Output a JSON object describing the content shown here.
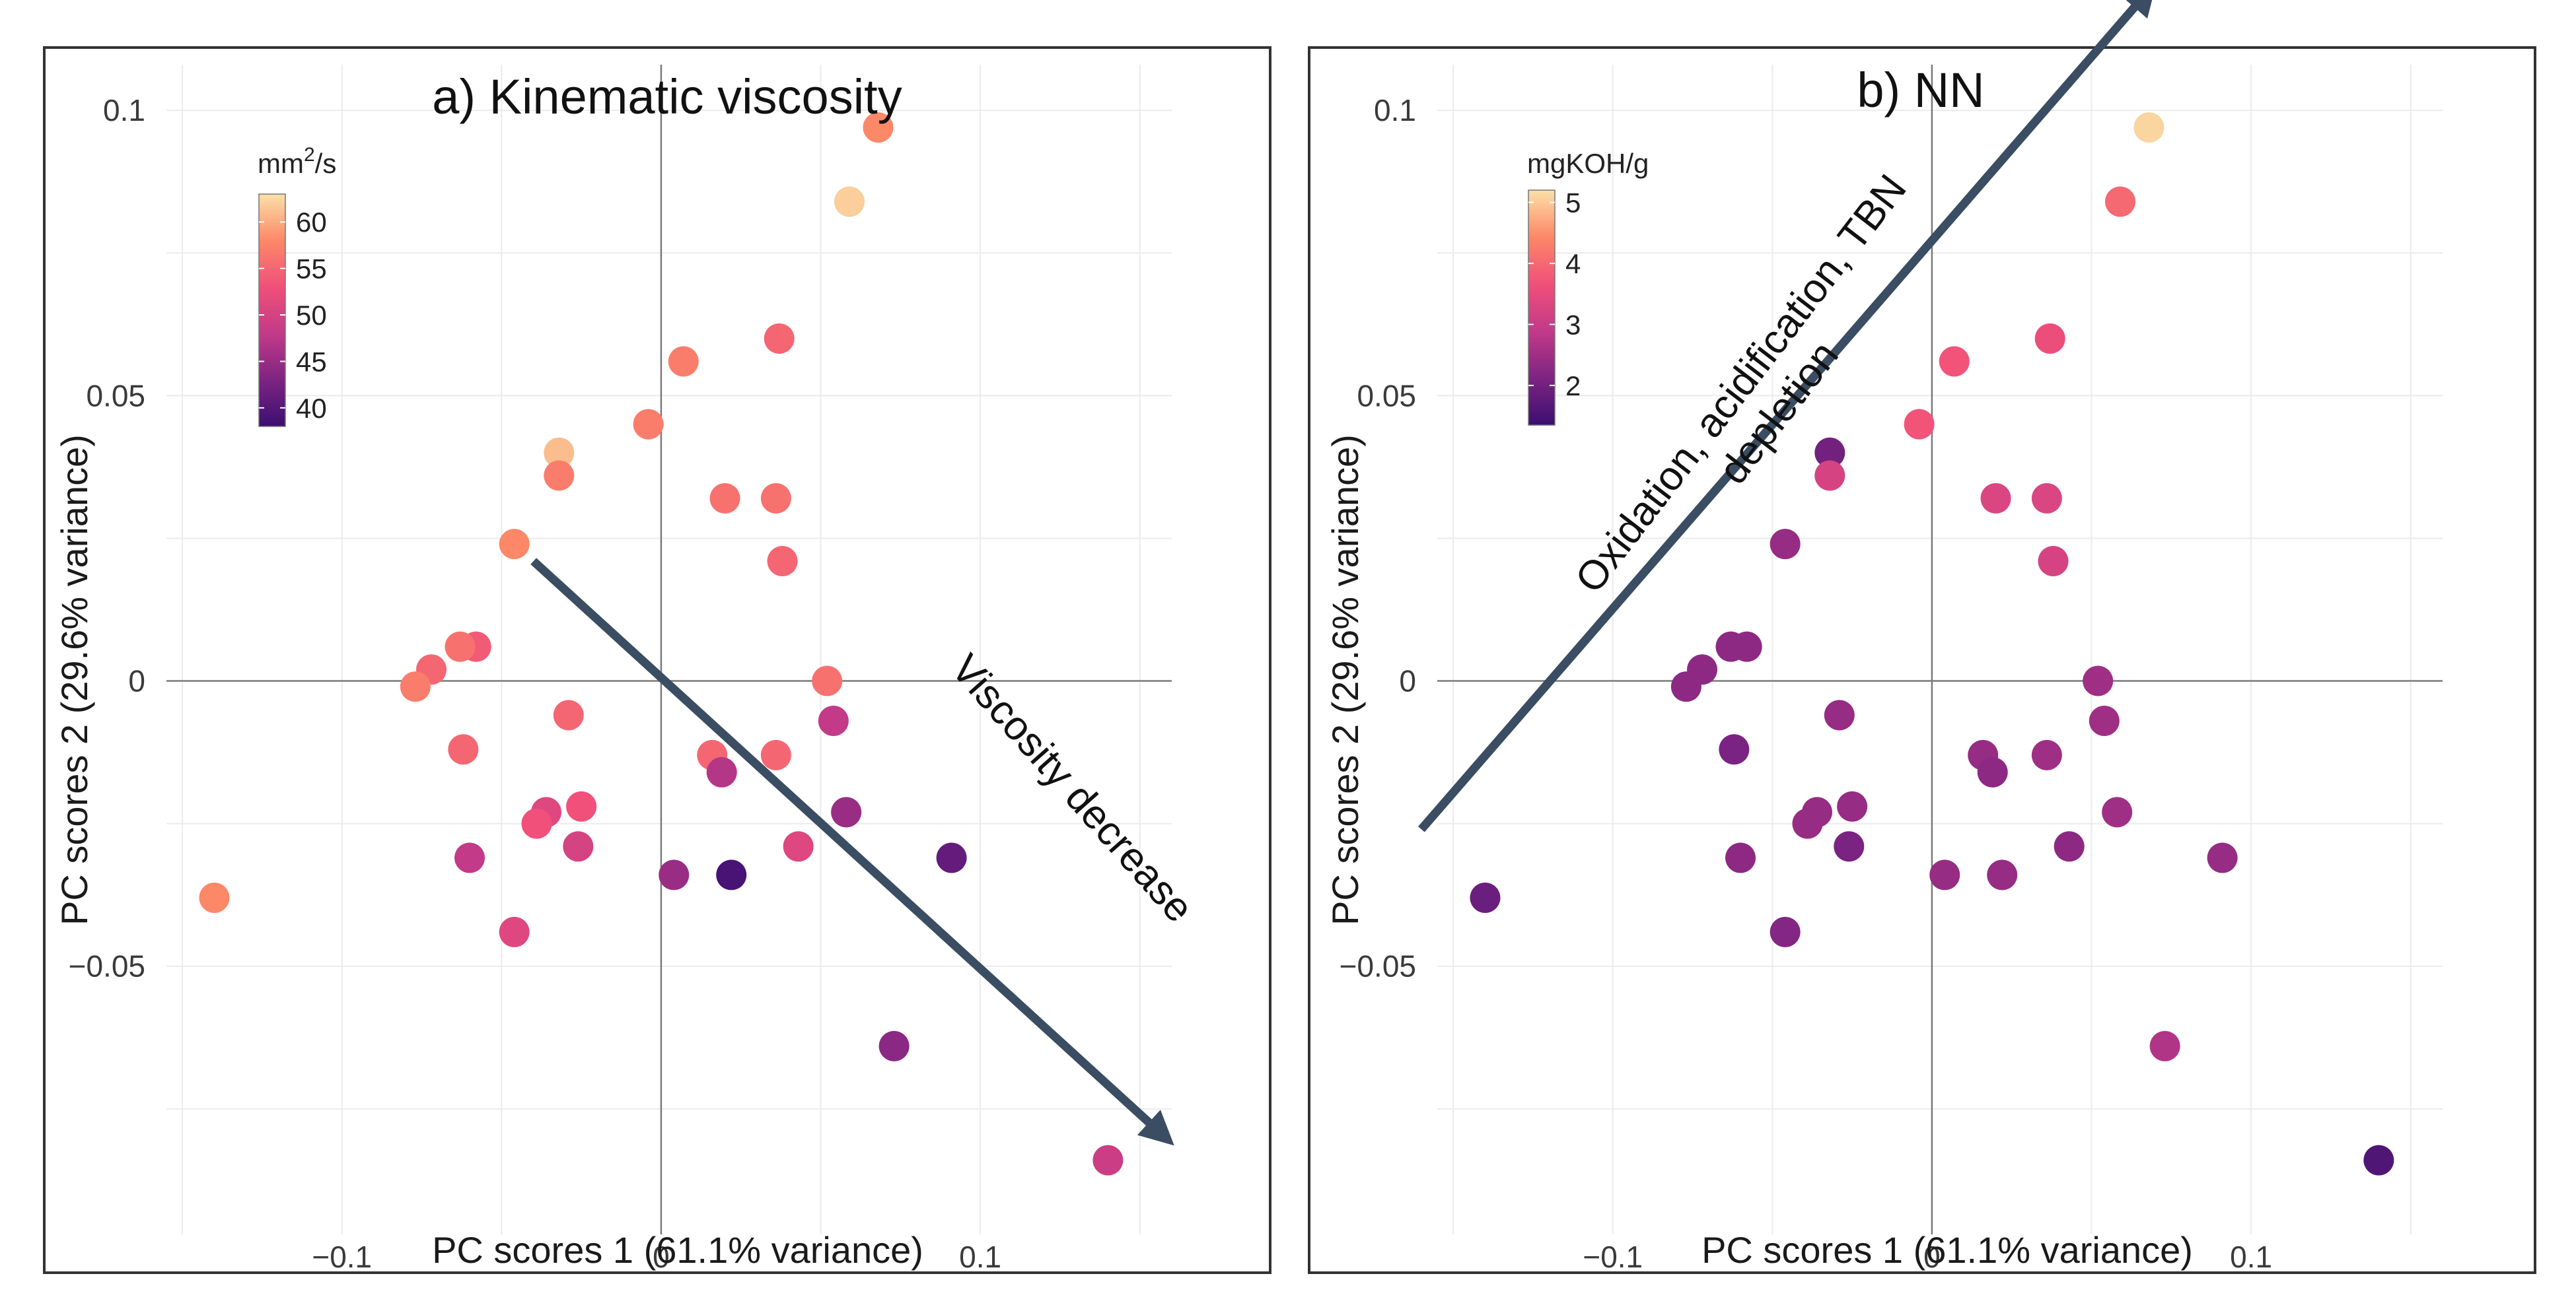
{
  "chart_data": [
    {
      "type": "scatter",
      "title": "a) Kinematic viscosity",
      "xlabel": "PC scores 1 (61.1% variance)",
      "ylabel": "PC scores 2 (29.6% variance)",
      "xlim": [
        -0.155,
        0.16
      ],
      "ylim": [
        -0.097,
        0.108
      ],
      "x_ticks": [
        -0.1,
        0,
        0.1
      ],
      "x_tick_labels": [
        "−0.1",
        "0",
        "0.1"
      ],
      "y_ticks": [
        -0.05,
        0,
        0.05,
        0.1
      ],
      "y_tick_labels": [
        "−0.05",
        "0",
        "0.05",
        "0.1"
      ],
      "colorbar": {
        "title_base": "mm",
        "title_sup": "2",
        "title_rest": "/s",
        "min": 38,
        "max": 63,
        "ticks": [
          60,
          55,
          50,
          45,
          40
        ],
        "colormap": "magma"
      },
      "annotation": {
        "text": "Viscosity decrease",
        "arrow_from": [
          -0.04,
          0.021
        ],
        "arrow_to": [
          0.158,
          -0.08
        ]
      },
      "points": [
        {
          "x": 0.068,
          "y": 0.097,
          "v": 58
        },
        {
          "x": 0.059,
          "y": 0.084,
          "v": 62
        },
        {
          "x": 0.007,
          "y": 0.056,
          "v": 57
        },
        {
          "x": 0.037,
          "y": 0.06,
          "v": 55
        },
        {
          "x": -0.004,
          "y": 0.045,
          "v": 57
        },
        {
          "x": -0.032,
          "y": 0.04,
          "v": 61
        },
        {
          "x": -0.032,
          "y": 0.036,
          "v": 57
        },
        {
          "x": 0.02,
          "y": 0.032,
          "v": 56
        },
        {
          "x": 0.036,
          "y": 0.032,
          "v": 56
        },
        {
          "x": -0.046,
          "y": 0.024,
          "v": 58
        },
        {
          "x": 0.038,
          "y": 0.021,
          "v": 55
        },
        {
          "x": 0.052,
          "y": 0.0,
          "v": 56
        },
        {
          "x": -0.058,
          "y": 0.006,
          "v": 54
        },
        {
          "x": -0.063,
          "y": 0.006,
          "v": 56
        },
        {
          "x": -0.072,
          "y": 0.002,
          "v": 55
        },
        {
          "x": -0.077,
          "y": -0.001,
          "v": 57
        },
        {
          "x": -0.029,
          "y": -0.006,
          "v": 55
        },
        {
          "x": 0.054,
          "y": -0.007,
          "v": 48
        },
        {
          "x": -0.062,
          "y": -0.012,
          "v": 55
        },
        {
          "x": 0.016,
          "y": -0.013,
          "v": 55
        },
        {
          "x": 0.036,
          "y": -0.013,
          "v": 55
        },
        {
          "x": 0.019,
          "y": -0.016,
          "v": 47
        },
        {
          "x": -0.025,
          "y": -0.022,
          "v": 53
        },
        {
          "x": 0.058,
          "y": -0.023,
          "v": 45
        },
        {
          "x": -0.036,
          "y": -0.023,
          "v": 51
        },
        {
          "x": -0.039,
          "y": -0.025,
          "v": 53
        },
        {
          "x": -0.026,
          "y": -0.029,
          "v": 50
        },
        {
          "x": 0.043,
          "y": -0.029,
          "v": 51
        },
        {
          "x": -0.06,
          "y": -0.031,
          "v": 48
        },
        {
          "x": 0.091,
          "y": -0.031,
          "v": 41
        },
        {
          "x": 0.004,
          "y": -0.034,
          "v": 45
        },
        {
          "x": 0.022,
          "y": -0.034,
          "v": 39
        },
        {
          "x": -0.046,
          "y": -0.044,
          "v": 51
        },
        {
          "x": -0.14,
          "y": -0.038,
          "v": 58
        },
        {
          "x": 0.073,
          "y": -0.064,
          "v": 44
        },
        {
          "x": 0.14,
          "y": -0.084,
          "v": 49
        }
      ]
    },
    {
      "type": "scatter",
      "title": "b) NN",
      "xlabel": "PC scores 1 (61.1% variance)",
      "ylabel": "PC scores 2 (29.6% variance)",
      "xlim": [
        -0.155,
        0.16
      ],
      "ylim": [
        -0.097,
        0.108
      ],
      "x_ticks": [
        -0.1,
        0,
        0.1
      ],
      "x_tick_labels": [
        "−0.1",
        "0",
        "0.1"
      ],
      "y_ticks": [
        -0.05,
        0,
        0.05,
        0.1
      ],
      "y_tick_labels": [
        "−0.05",
        "0",
        "0.05",
        "0.1"
      ],
      "colorbar": {
        "title_base": "mgKOH/g",
        "title_sup": "",
        "title_rest": "",
        "min": 1.35,
        "max": 5.2,
        "ticks": [
          5,
          4,
          3,
          2
        ],
        "colormap": "magma"
      },
      "annotation": {
        "text_line1": "Oxidation,  acidification, TBN",
        "text_line2": "depletion",
        "arrow_from": [
          -0.16,
          -0.026
        ],
        "arrow_to": [
          0.068,
          0.121
        ]
      },
      "points": [
        {
          "x": 0.068,
          "y": 0.097,
          "v": 5.1
        },
        {
          "x": 0.059,
          "y": 0.084,
          "v": 4.0
        },
        {
          "x": 0.007,
          "y": 0.056,
          "v": 3.7
        },
        {
          "x": 0.037,
          "y": 0.06,
          "v": 3.6
        },
        {
          "x": -0.004,
          "y": 0.045,
          "v": 3.7
        },
        {
          "x": -0.032,
          "y": 0.04,
          "v": 2.0
        },
        {
          "x": -0.032,
          "y": 0.036,
          "v": 3.2
        },
        {
          "x": 0.02,
          "y": 0.032,
          "v": 3.3
        },
        {
          "x": 0.036,
          "y": 0.032,
          "v": 3.3
        },
        {
          "x": -0.046,
          "y": 0.024,
          "v": 2.4
        },
        {
          "x": 0.038,
          "y": 0.021,
          "v": 3.2
        },
        {
          "x": 0.052,
          "y": 0.0,
          "v": 2.5
        },
        {
          "x": -0.058,
          "y": 0.006,
          "v": 2.3
        },
        {
          "x": -0.063,
          "y": 0.006,
          "v": 2.3
        },
        {
          "x": -0.072,
          "y": 0.002,
          "v": 2.3
        },
        {
          "x": -0.077,
          "y": -0.001,
          "v": 2.3
        },
        {
          "x": -0.029,
          "y": -0.006,
          "v": 2.4
        },
        {
          "x": 0.054,
          "y": -0.007,
          "v": 2.5
        },
        {
          "x": -0.062,
          "y": -0.012,
          "v": 2.1
        },
        {
          "x": 0.016,
          "y": -0.013,
          "v": 2.4
        },
        {
          "x": 0.036,
          "y": -0.013,
          "v": 2.5
        },
        {
          "x": 0.019,
          "y": -0.016,
          "v": 2.3
        },
        {
          "x": -0.025,
          "y": -0.022,
          "v": 2.4
        },
        {
          "x": 0.058,
          "y": -0.023,
          "v": 2.5
        },
        {
          "x": -0.036,
          "y": -0.023,
          "v": 2.4
        },
        {
          "x": -0.039,
          "y": -0.025,
          "v": 2.4
        },
        {
          "x": -0.026,
          "y": -0.029,
          "v": 2.1
        },
        {
          "x": 0.043,
          "y": -0.029,
          "v": 2.3
        },
        {
          "x": -0.06,
          "y": -0.031,
          "v": 2.3
        },
        {
          "x": 0.091,
          "y": -0.031,
          "v": 2.4
        },
        {
          "x": 0.004,
          "y": -0.034,
          "v": 2.4
        },
        {
          "x": 0.022,
          "y": -0.034,
          "v": 2.4
        },
        {
          "x": -0.046,
          "y": -0.044,
          "v": 2.2
        },
        {
          "x": -0.14,
          "y": -0.038,
          "v": 1.9
        },
        {
          "x": 0.073,
          "y": -0.064,
          "v": 2.7
        },
        {
          "x": 0.14,
          "y": -0.084,
          "v": 1.6
        }
      ]
    }
  ]
}
